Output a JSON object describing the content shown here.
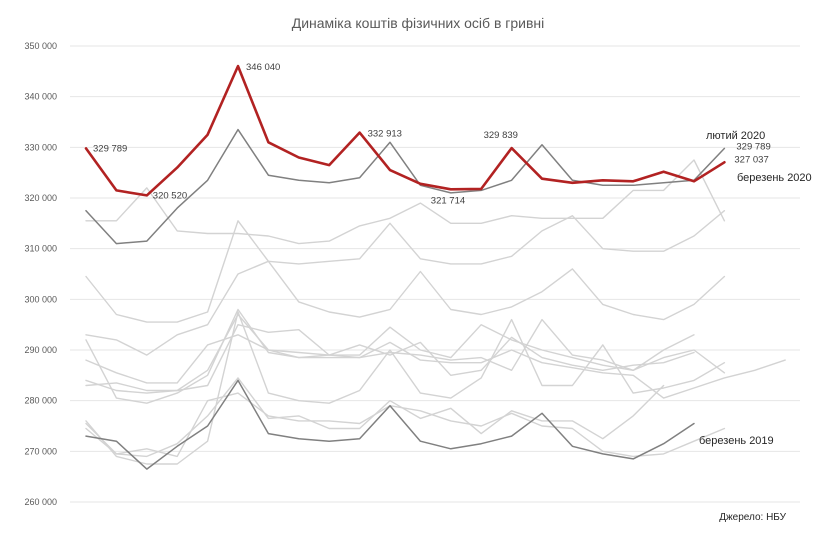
{
  "chart_data": {
    "type": "line",
    "title": "Динаміка коштів фізичних осіб в гривні",
    "source": "Джерело: НБУ",
    "xlabel": "",
    "ylabel": "",
    "ylim": [
      260000,
      350000
    ],
    "yticks": [
      260000,
      270000,
      280000,
      290000,
      300000,
      310000,
      320000,
      330000,
      340000,
      350000
    ],
    "ytick_labels": [
      "260 000",
      "270 000",
      "280 000",
      "290 000",
      "300 000",
      "310 000",
      "320 000",
      "330 000",
      "340 000",
      "350 000"
    ],
    "x_points": 24,
    "colors": {
      "highlight": "#b22222",
      "prev": "#808080",
      "background": "#d3d3d3"
    },
    "series": [
      {
        "name": "bg-1",
        "role": "background",
        "values": [
          284000,
          282000,
          281500,
          282000,
          283000,
          295000,
          293500,
          294000,
          289000,
          289000,
          294500,
          290000,
          288500,
          295000,
          292000,
          290000,
          288500,
          287000,
          286000,
          290000,
          293000
        ]
      },
      {
        "name": "bg-2",
        "role": "background",
        "values": [
          283000,
          283500,
          282000,
          282000,
          286000,
          297000,
          290000,
          288500,
          289000,
          291000,
          289000,
          291500,
          285000,
          286000,
          292500,
          288500,
          287000,
          286000,
          287000,
          287500,
          289500
        ]
      },
      {
        "name": "bg-3",
        "role": "background",
        "values": [
          292000,
          280500,
          279500,
          281500,
          285000,
          298000,
          289500,
          288500,
          288500,
          288500,
          291500,
          288000,
          287500,
          287500,
          290000,
          287500,
          286500,
          285500,
          285000,
          280500,
          282500,
          284500,
          286000,
          288000
        ]
      },
      {
        "name": "bg-4",
        "role": "background",
        "values": [
          288000,
          285500,
          283500,
          283500,
          291000,
          293000,
          290000,
          289500,
          289000,
          288500,
          289500,
          289000,
          288000,
          288500,
          286000,
          296000,
          289000,
          288000,
          286000,
          288500,
          290000,
          285500
        ]
      },
      {
        "name": "bg-5",
        "role": "background",
        "values": [
          275500,
          269500,
          270500,
          269000,
          280000,
          281500,
          277000,
          276000,
          276000,
          275500,
          279000,
          278000,
          276000,
          275000,
          277500,
          275000,
          274500,
          270000,
          269000,
          269500,
          272000,
          274500
        ]
      },
      {
        "name": "bg-6",
        "role": "background",
        "values": [
          274500,
          269500,
          269000,
          271500,
          277000,
          284500,
          276500,
          277000,
          274500,
          274500,
          280000,
          276500,
          278500,
          273500,
          278000,
          276000,
          276000,
          272500,
          277000,
          283000
        ]
      },
      {
        "name": "bg-7",
        "role": "background",
        "values": [
          276000,
          269000,
          267500,
          267500,
          272000,
          297500,
          281500,
          280000,
          279500,
          282000,
          290000,
          281500,
          280500,
          284500,
          296000,
          283000,
          283000,
          291000,
          281500,
          282500,
          284000,
          287500
        ]
      },
      {
        "name": "bg-8",
        "role": "background",
        "values": [
          293000,
          292000,
          289000,
          293000,
          295000,
          305000,
          307500,
          307000,
          307500,
          308000,
          315000,
          308000,
          307000,
          307000,
          308500,
          313500,
          316500,
          310000,
          309500,
          309500,
          312500,
          317500
        ]
      },
      {
        "name": "bg-9",
        "role": "background",
        "values": [
          304500,
          297000,
          295500,
          295500,
          297500,
          315500,
          307500,
          299500,
          297500,
          296500,
          298000,
          305500,
          298000,
          297000,
          298500,
          301500,
          306000,
          299000,
          297000,
          296000,
          299000,
          304500
        ]
      },
      {
        "name": "bg-10",
        "role": "background",
        "values": [
          315500,
          315500,
          322000,
          313500,
          313000,
          313000,
          312500,
          311000,
          311500,
          314500,
          316000,
          319000,
          315000,
          315000,
          316500,
          316000,
          316000,
          316000,
          321500,
          321500,
          327500,
          315500
        ]
      },
      {
        "name": "лютий 2020",
        "role": "prev",
        "values": [
          317500,
          311000,
          311500,
          318000,
          323500,
          333500,
          324500,
          323500,
          323000,
          324000,
          331000,
          322500,
          321000,
          321500,
          323500,
          330500,
          323500,
          322500,
          322500,
          323000,
          323500,
          329789
        ]
      },
      {
        "name": "березень 2019",
        "role": "prev",
        "values": [
          273000,
          272000,
          266500,
          271000,
          275000,
          284000,
          273500,
          272500,
          272000,
          272500,
          279000,
          272000,
          270500,
          271500,
          273000,
          277500,
          271000,
          269500,
          268500,
          271500,
          275500
        ]
      },
      {
        "name": "березень 2020",
        "role": "highlight",
        "values": [
          329789,
          321500,
          320520,
          326000,
          332500,
          346040,
          331000,
          328000,
          326500,
          332913,
          325500,
          322800,
          321714,
          321800,
          329839,
          323800,
          323000,
          323500,
          323300,
          325200,
          323300,
          327037
        ]
      }
    ],
    "data_labels": [
      {
        "series": "березень 2020",
        "index": 0,
        "text": "329 789"
      },
      {
        "series": "березень 2020",
        "index": 2,
        "text": "320 520"
      },
      {
        "series": "березень 2020",
        "index": 5,
        "text": "346 040"
      },
      {
        "series": "березень 2020",
        "index": 9,
        "text": "332 913"
      },
      {
        "series": "березень 2020",
        "index": 12,
        "text": "321 714"
      },
      {
        "series": "березень 2020",
        "index": 14,
        "text": "329 839"
      },
      {
        "series": "березень 2020",
        "index": 21,
        "text": "327 037"
      },
      {
        "series": "лютий 2020",
        "index": 21,
        "text": "329 789"
      }
    ],
    "series_labels": [
      {
        "series": "лютий 2020",
        "text": "лютий 2020"
      },
      {
        "series": "березень 2020",
        "text": "березень 2020"
      },
      {
        "series": "березень 2019",
        "text": "березень 2019"
      }
    ]
  }
}
